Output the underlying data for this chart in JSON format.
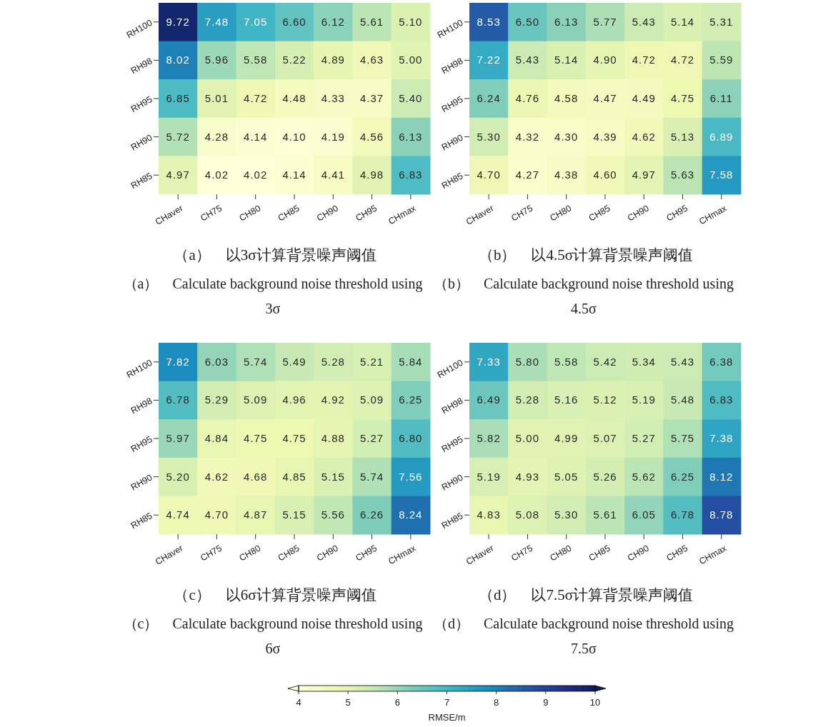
{
  "chart_data": [
    {
      "type": "heatmap",
      "title": "（a）　以3σ计算背景噪声阈值",
      "subtitle": "（a）　Calculate background noise threshold using 3σ",
      "categories": [
        "CHaver",
        "CH75",
        "CH80",
        "CH85",
        "CH90",
        "CH95",
        "CHmax"
      ],
      "y_categories": [
        "RH100",
        "RH98",
        "RH95",
        "RH90",
        "RH85"
      ],
      "cell_labels": [
        [
          "9.72",
          "7.48",
          "7.05",
          "6.60",
          "6.12",
          "5.61",
          "5.10"
        ],
        [
          "8.02",
          "5.96",
          "5.58",
          "5.22",
          "4.89",
          "4.63",
          "5.00"
        ],
        [
          "6.85",
          "5.01",
          "4.72",
          "4.48",
          "4.33",
          "4.37",
          "5.40"
        ],
        [
          "5.72",
          "4.28",
          "4.14",
          "4.10",
          "4.19",
          "4.56",
          "6.13"
        ],
        [
          "4.97",
          "4.02",
          "4.02",
          "4.14",
          "4.41",
          "4.98",
          "6.83"
        ]
      ],
      "cells": [
        [
          9.72,
          7.48,
          7.05,
          6.6,
          6.12,
          5.61,
          5.1
        ],
        [
          8.02,
          5.96,
          5.58,
          5.22,
          4.89,
          4.63,
          5.0
        ],
        [
          6.85,
          5.01,
          4.72,
          4.48,
          4.33,
          4.37,
          5.4
        ],
        [
          5.72,
          4.28,
          4.14,
          4.1,
          4.19,
          4.56,
          6.13
        ],
        [
          4.97,
          4.02,
          4.02,
          4.14,
          4.41,
          4.98,
          6.83
        ]
      ]
    },
    {
      "type": "heatmap",
      "title": "（b）　以4.5σ计算背景噪声阈值",
      "subtitle": "（b）　Calculate background noise threshold using 4.5σ",
      "categories": [
        "CHaver",
        "CH75",
        "CH80",
        "CH85",
        "CH90",
        "CH95",
        "CHmax"
      ],
      "y_categories": [
        "RH100",
        "RH98",
        "RH95",
        "RH90",
        "RH85"
      ],
      "cell_labels": [
        [
          "8.53",
          "6.50",
          "6.13",
          "5.77",
          "5.43",
          "5.14",
          "5.31"
        ],
        [
          "7.22",
          "5.43",
          "5.14",
          "4.90",
          "4.72",
          "4.72",
          "5.59"
        ],
        [
          "6.24",
          "4.76",
          "4.58",
          "4.47",
          "4.49",
          "4.75",
          "6.11"
        ],
        [
          "5.30",
          "4.32",
          "4.30",
          "4.39",
          "4.62",
          "5.13",
          "6.89"
        ],
        [
          "4.70",
          "4.27",
          "4.38",
          "4.60",
          "4.97",
          "5.63",
          "7.58"
        ]
      ],
      "cells": [
        [
          8.53,
          6.5,
          6.13,
          5.77,
          5.43,
          5.14,
          5.31
        ],
        [
          7.22,
          5.43,
          5.14,
          4.9,
          4.72,
          4.72,
          5.59
        ],
        [
          6.24,
          4.76,
          4.58,
          4.47,
          4.49,
          4.75,
          6.11
        ],
        [
          5.3,
          4.32,
          4.3,
          4.39,
          4.62,
          5.13,
          6.89
        ],
        [
          4.7,
          4.27,
          4.38,
          4.6,
          4.97,
          5.63,
          7.58
        ]
      ]
    },
    {
      "type": "heatmap",
      "title": "（c）　以6σ计算背景噪声阈值",
      "subtitle": "（c）　Calculate background noise threshold using 6σ",
      "categories": [
        "CHaver",
        "CH75",
        "CH80",
        "CH85",
        "CH90",
        "CH95",
        "CHmax"
      ],
      "y_categories": [
        "RH100",
        "RH98",
        "RH95",
        "RH90",
        "RH85"
      ],
      "cell_labels": [
        [
          "7.82",
          "6.03",
          "5.74",
          "5.49",
          "5.28",
          "5.21",
          "5.84"
        ],
        [
          "6.78",
          "5.29",
          "5.09",
          "4.96",
          "4.92",
          "5.09",
          "6.25"
        ],
        [
          "5.97",
          "4.84",
          "4.75",
          "4.75",
          "4.88",
          "5.27",
          "6.80"
        ],
        [
          "5.20",
          "4.62",
          "4.68",
          "4.85",
          "5.15",
          "5.74",
          "7.56"
        ],
        [
          "4.74",
          "4.70",
          "4.87",
          "5.15",
          "5.56",
          "6.26",
          "8.24"
        ]
      ],
      "cells": [
        [
          7.82,
          6.03,
          5.74,
          5.49,
          5.28,
          5.21,
          5.84
        ],
        [
          6.78,
          5.29,
          5.09,
          4.96,
          4.92,
          5.09,
          6.25
        ],
        [
          5.97,
          4.84,
          4.75,
          4.75,
          4.88,
          5.27,
          6.8
        ],
        [
          5.2,
          4.62,
          4.68,
          4.85,
          5.15,
          5.74,
          7.56
        ],
        [
          4.74,
          4.7,
          4.87,
          5.15,
          5.56,
          6.26,
          8.24
        ]
      ]
    },
    {
      "type": "heatmap",
      "title": "（d）　以7.5σ计算背景噪声阈值",
      "subtitle": "（d）　Calculate background noise threshold using 7.5σ",
      "categories": [
        "CHaver",
        "CH75",
        "CH80",
        "CH85",
        "CH90",
        "CH95",
        "CHmax"
      ],
      "y_categories": [
        "RH100",
        "RH98",
        "RH95",
        "RH90",
        "RH85"
      ],
      "clim": [
        4,
        10
      ],
      "cticks": [
        4,
        5,
        6,
        7,
        8,
        9,
        10
      ],
      "clabel": "RMSE/m",
      "cell_labels": [
        [
          "7.33",
          "5.80",
          "5.58",
          "5.42",
          "5.34",
          "5.43",
          "6.38"
        ],
        [
          "6.49",
          "5.28",
          "5.16",
          "5.12",
          "5.19",
          "5.48",
          "6.83"
        ],
        [
          "5.82",
          "5.00",
          "4.99",
          "5.07",
          "5.27",
          "5.75",
          "7.38"
        ],
        [
          "5.19",
          "4.93",
          "5.05",
          "5.26",
          "5.62",
          "6.25",
          "8.12"
        ],
        [
          "4.83",
          "5.08",
          "5.30",
          "5.61",
          "6.05",
          "6.78",
          "8.78"
        ]
      ],
      "cells": [
        [
          7.33,
          5.8,
          5.58,
          5.42,
          5.34,
          5.43,
          6.38
        ],
        [
          6.49,
          5.28,
          5.16,
          5.12,
          5.19,
          5.48,
          6.83
        ],
        [
          5.82,
          5.0,
          4.99,
          5.07,
          5.27,
          5.75,
          7.38
        ],
        [
          5.19,
          4.93,
          5.05,
          5.26,
          5.62,
          6.25,
          8.12
        ],
        [
          4.83,
          5.08,
          5.3,
          5.61,
          6.05,
          6.78,
          8.78
        ]
      ]
    }
  ]
}
